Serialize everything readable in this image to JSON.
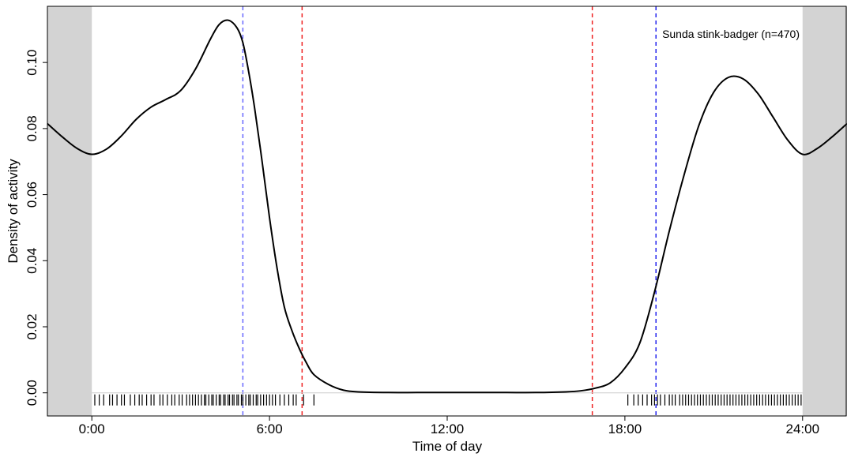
{
  "chart_data": {
    "type": "line",
    "xlabel": "Time of day",
    "ylabel": "Density of activity",
    "xlim": [
      -1.5,
      25.5
    ],
    "ylim": [
      -0.007,
      0.117
    ],
    "x_ticks": [
      0,
      6,
      12,
      18,
      24
    ],
    "x_tick_labels": [
      "0:00",
      "6:00",
      "12:00",
      "18:00",
      "24:00"
    ],
    "y_ticks": [
      0,
      0.02,
      0.04,
      0.06,
      0.08,
      0.1
    ],
    "y_tick_labels": [
      "0.00",
      "0.02",
      "0.04",
      "0.06",
      "0.08",
      "0.10"
    ],
    "annotation": "Sunda stink-badger (n=470)",
    "shaded_ranges": [
      [
        -1.5,
        0
      ],
      [
        24,
        25.5
      ]
    ],
    "vertical_lines": [
      {
        "x": 5.1,
        "color": "#6666ff",
        "style": "dashed"
      },
      {
        "x": 7.1,
        "color": "#ee2222",
        "style": "dashed"
      },
      {
        "x": 16.9,
        "color": "#ee2222",
        "style": "dashed"
      },
      {
        "x": 19.05,
        "color": "#2222ee",
        "style": "dashed"
      }
    ],
    "series": [
      {
        "color": "#000000",
        "x": [
          -1.5,
          -1,
          -0.5,
          0,
          0.5,
          1,
          1.5,
          2,
          2.5,
          3,
          3.5,
          4,
          4.3,
          4.6,
          4.9,
          5.1,
          5.3,
          5.5,
          5.75,
          6,
          6.25,
          6.5,
          6.75,
          7,
          7.25,
          7.5,
          8,
          8.5,
          9,
          10,
          11,
          12,
          13,
          14,
          15,
          16,
          16.5,
          17,
          17.5,
          18,
          18.5,
          19,
          19.5,
          20,
          20.5,
          21,
          21.5,
          22,
          22.5,
          23,
          23.5,
          24,
          24.5,
          25,
          25.5
        ],
        "y": [
          0.0815,
          0.0775,
          0.074,
          0.0722,
          0.0738,
          0.0778,
          0.0828,
          0.0865,
          0.0888,
          0.0915,
          0.098,
          0.107,
          0.1115,
          0.1128,
          0.1105,
          0.106,
          0.097,
          0.086,
          0.07,
          0.053,
          0.038,
          0.026,
          0.019,
          0.0135,
          0.009,
          0.0055,
          0.0025,
          0.0008,
          0.0003,
          0.0001,
          0.0001,
          0.0001,
          0.0001,
          0.0001,
          0.0001,
          0.0003,
          0.0006,
          0.0014,
          0.003,
          0.0075,
          0.015,
          0.0305,
          0.049,
          0.066,
          0.081,
          0.091,
          0.0955,
          0.095,
          0.0905,
          0.0835,
          0.0765,
          0.0722,
          0.074,
          0.0775,
          0.0815
        ]
      }
    ],
    "rug": [
      0.1,
      0.25,
      0.4,
      0.6,
      0.7,
      0.85,
      1.0,
      1.1,
      1.3,
      1.45,
      1.6,
      1.7,
      1.85,
      2.0,
      2.1,
      2.3,
      2.4,
      2.55,
      2.7,
      2.8,
      2.95,
      3.05,
      3.2,
      3.3,
      3.4,
      3.5,
      3.6,
      3.7,
      3.8,
      3.85,
      3.95,
      4.05,
      4.1,
      4.2,
      4.3,
      4.35,
      4.45,
      4.5,
      4.6,
      4.65,
      4.75,
      4.8,
      4.9,
      4.95,
      5.05,
      5.1,
      5.2,
      5.3,
      5.35,
      5.45,
      5.55,
      5.6,
      5.7,
      5.8,
      5.9,
      6.0,
      6.1,
      6.2,
      6.35,
      6.5,
      6.65,
      6.8,
      6.9,
      7.15,
      7.5,
      18.1,
      18.3,
      18.45,
      18.6,
      18.75,
      18.9,
      19.0,
      19.1,
      19.2,
      19.35,
      19.5,
      19.6,
      19.7,
      19.85,
      19.95,
      20.05,
      20.15,
      20.25,
      20.35,
      20.45,
      20.55,
      20.65,
      20.75,
      20.85,
      20.95,
      21.05,
      21.15,
      21.25,
      21.35,
      21.45,
      21.55,
      21.65,
      21.75,
      21.85,
      21.95,
      22.05,
      22.15,
      22.25,
      22.35,
      22.45,
      22.55,
      22.65,
      22.75,
      22.85,
      22.95,
      23.05,
      23.15,
      23.25,
      23.35,
      23.45,
      23.55,
      23.65,
      23.75,
      23.85,
      23.95
    ]
  }
}
